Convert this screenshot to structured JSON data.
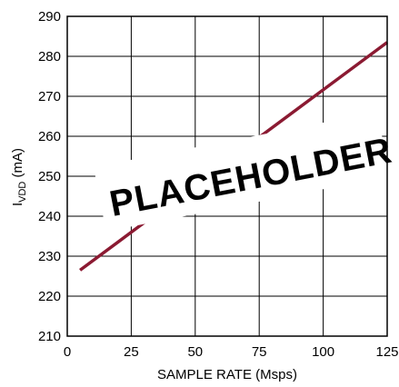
{
  "chart_data": {
    "type": "line",
    "xlabel": "SAMPLE RATE (Msps)",
    "ylabel_main": "I",
    "ylabel_sub": "VDD",
    "ylabel_unit": " (mA)",
    "xlim": [
      0,
      125
    ],
    "ylim": [
      210,
      290
    ],
    "xticks": [
      0,
      25,
      50,
      75,
      100,
      125
    ],
    "yticks": [
      210,
      220,
      230,
      240,
      250,
      260,
      270,
      280,
      290
    ],
    "grid": true,
    "series": [
      {
        "color": "#8b1a32",
        "x": [
          5,
          125
        ],
        "y": [
          226.5,
          283.5
        ]
      }
    ],
    "annotation": "PLACEHOLDER"
  }
}
